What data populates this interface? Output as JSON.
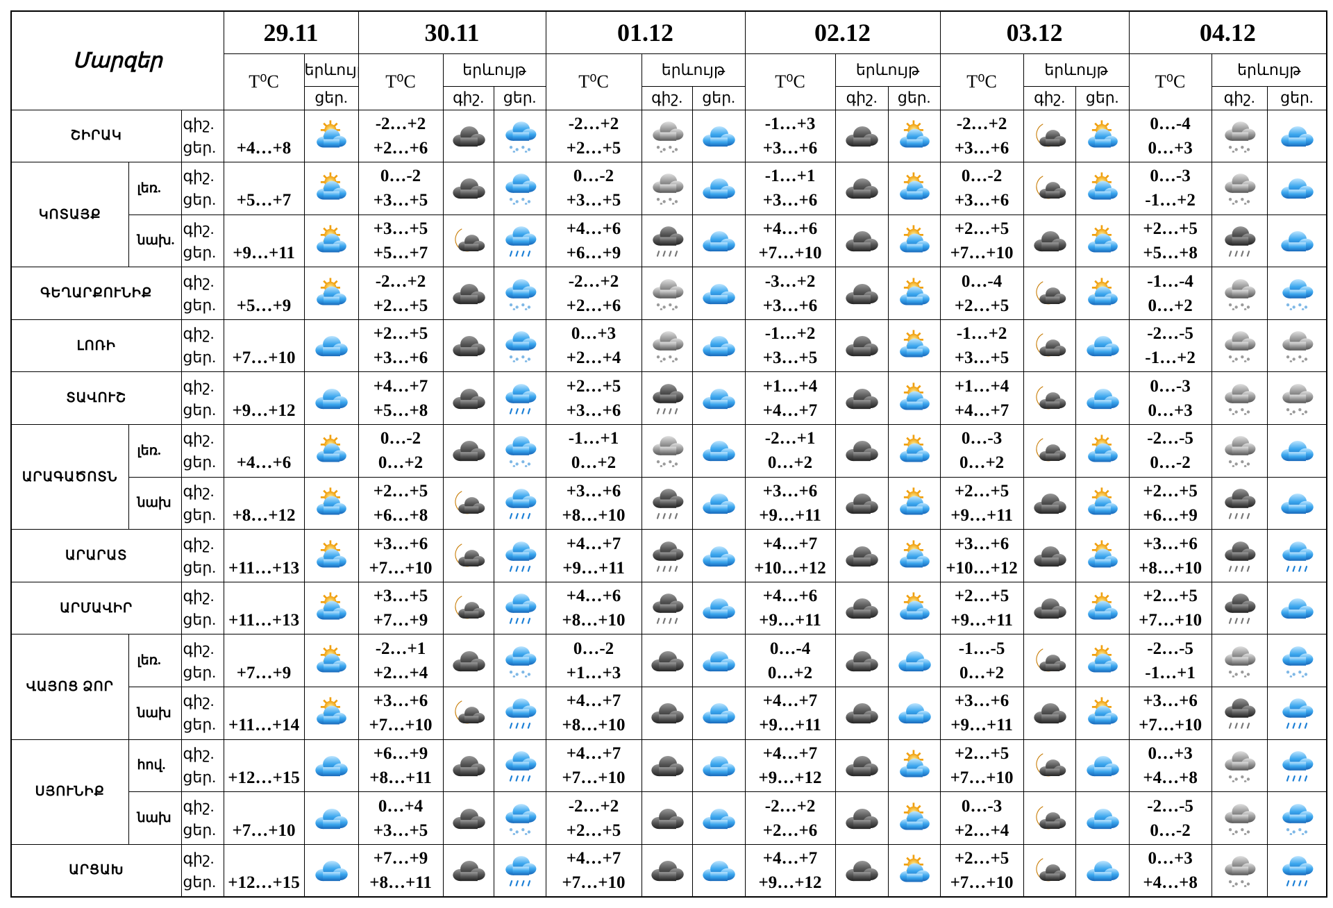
{
  "header": {
    "title": "Մարզեր",
    "dates": [
      "29.11",
      "30.11",
      "01.12",
      "02.12",
      "03.12",
      "04.12"
    ],
    "temp_label": "T⁰C",
    "phenomenon": "երևույթ",
    "night": "գիշ.",
    "day": "ցեր."
  },
  "regions": [
    {
      "name": "ՇԻՐԱԿ",
      "zones": [
        {
          "today_day": "+4…+8",
          "days": [
            {
              "night": "-2…+2",
              "day": "+2…+6"
            },
            {
              "night": "-2…+2",
              "day": "+2…+5"
            },
            {
              "night": "-1…+3",
              "day": "+3…+6"
            },
            {
              "night": "-2…+2",
              "day": "+3…+6"
            },
            {
              "night": "0…-4",
              "day": "0…+3"
            }
          ]
        }
      ]
    },
    {
      "name": "ԿՈՏԱՅՔ",
      "zones": [
        {
          "name": "լեռ.",
          "today_day": "+5…+7",
          "days": [
            {
              "night": "0…-2",
              "day": "+3…+5"
            },
            {
              "night": "0…-2",
              "day": "+3…+5"
            },
            {
              "night": "-1…+1",
              "day": "+3…+6"
            },
            {
              "night": "0…-2",
              "day": "+3…+6"
            },
            {
              "night": "0…-3",
              "day": "-1…+2"
            }
          ]
        },
        {
          "name": "նախ.",
          "today_day": "+9…+11",
          "days": [
            {
              "night": "+3…+5",
              "day": "+5…+7"
            },
            {
              "night": "+4…+6",
              "day": "+6…+9"
            },
            {
              "night": "+4…+6",
              "day": "+7…+10"
            },
            {
              "night": "+2…+5",
              "day": "+7…+10"
            },
            {
              "night": "+2…+5",
              "day": "+5…+8"
            }
          ]
        }
      ]
    },
    {
      "name": "ԳԵՂԱՐՔՈՒՆԻՔ",
      "zones": [
        {
          "today_day": "+5…+9",
          "days": [
            {
              "night": "-2…+2",
              "day": "+2…+5"
            },
            {
              "night": "-2…+2",
              "day": "+2…+6"
            },
            {
              "night": "-3…+2",
              "day": "+3…+6"
            },
            {
              "night": "0…-4",
              "day": "+2…+5"
            },
            {
              "night": "-1…-4",
              "day": "0…+2"
            }
          ]
        }
      ]
    },
    {
      "name": "ԼՈՌԻ",
      "zones": [
        {
          "today_day": "+7…+10",
          "days": [
            {
              "night": "+2…+5",
              "day": "+3…+6"
            },
            {
              "night": "0…+3",
              "day": "+2…+4"
            },
            {
              "night": "-1…+2",
              "day": "+3…+5"
            },
            {
              "night": "-1…+2",
              "day": "+3…+5"
            },
            {
              "night": "-2…-5",
              "day": "-1…+2"
            }
          ]
        }
      ]
    },
    {
      "name": "ՏԱՎՈՒՇ",
      "zones": [
        {
          "today_day": "+9…+12",
          "days": [
            {
              "night": "+4…+7",
              "day": "+5…+8"
            },
            {
              "night": "+2…+5",
              "day": "+3…+6"
            },
            {
              "night": "+1…+4",
              "day": "+4…+7"
            },
            {
              "night": "+1…+4",
              "day": "+4…+7"
            },
            {
              "night": "0…-3",
              "day": "0…+3"
            }
          ]
        }
      ]
    },
    {
      "name": "ԱՐԱԳԱԾՈՏՆ",
      "zones": [
        {
          "name": "լեռ.",
          "today_day": "+4…+6",
          "days": [
            {
              "night": "0…-2",
              "day": "0…+2"
            },
            {
              "night": "-1…+1",
              "day": "0…+2"
            },
            {
              "night": "-2…+1",
              "day": "0…+2"
            },
            {
              "night": "0…-3",
              "day": "0…+2"
            },
            {
              "night": "-2…-5",
              "day": "0…-2"
            }
          ]
        },
        {
          "name": "նախ",
          "today_day": "+8…+12",
          "days": [
            {
              "night": "+2…+5",
              "day": "+6…+8"
            },
            {
              "night": "+3…+6",
              "day": "+8…+10"
            },
            {
              "night": "+3…+6",
              "day": "+9…+11"
            },
            {
              "night": "+2…+5",
              "day": "+9…+11"
            },
            {
              "night": "+2…+5",
              "day": "+6…+9"
            }
          ]
        }
      ]
    },
    {
      "name": "ԱՐԱՐԱՏ",
      "zones": [
        {
          "today_day": "+11…+13",
          "days": [
            {
              "night": "+3…+6",
              "day": "+7…+10"
            },
            {
              "night": "+4…+7",
              "day": "+9…+11"
            },
            {
              "night": "+4…+7",
              "day": "+10…+12"
            },
            {
              "night": "+3…+6",
              "day": "+10…+12"
            },
            {
              "night": "+3…+6",
              "day": "+8…+10"
            }
          ]
        }
      ]
    },
    {
      "name": "ԱՐՄԱՎԻՐ",
      "zones": [
        {
          "today_day": "+11…+13",
          "days": [
            {
              "night": "+3…+5",
              "day": "+7…+9"
            },
            {
              "night": "+4…+6",
              "day": "+8…+10"
            },
            {
              "night": "+4…+6",
              "day": "+9…+11"
            },
            {
              "night": "+2…+5",
              "day": "+9…+11"
            },
            {
              "night": "+2…+5",
              "day": "+7…+10"
            }
          ]
        }
      ]
    },
    {
      "name": "ՎԱՅՈՑ ՁՈՐ",
      "zones": [
        {
          "name": "լեռ.",
          "today_day": "+7…+9",
          "days": [
            {
              "night": "-2…+1",
              "day": "+2…+4"
            },
            {
              "night": "0…-2",
              "day": "+1…+3"
            },
            {
              "night": "0…-4",
              "day": "0…+2"
            },
            {
              "night": "-1…-5",
              "day": "0…+2"
            },
            {
              "night": "-2…-5",
              "day": "-1…+1"
            }
          ]
        },
        {
          "name": "նախ",
          "today_day": "+11…+14",
          "days": [
            {
              "night": "+3…+6",
              "day": "+7…+10"
            },
            {
              "night": "+4…+7",
              "day": "+8…+10"
            },
            {
              "night": "+4…+7",
              "day": "+9…+11"
            },
            {
              "night": "+3…+6",
              "day": "+9…+11"
            },
            {
              "night": "+3…+6",
              "day": "+7…+10"
            }
          ]
        }
      ]
    },
    {
      "name": "ՍՅՈՒՆԻՔ",
      "zones": [
        {
          "name": "հով.",
          "today_day": "+12…+15",
          "days": [
            {
              "night": "+6…+9",
              "day": "+8…+11"
            },
            {
              "night": "+4…+7",
              "day": "+7…+10"
            },
            {
              "night": "+4…+7",
              "day": "+9…+12"
            },
            {
              "night": "+2…+5",
              "day": "+7…+10"
            },
            {
              "night": "0…+3",
              "day": "+4…+8"
            }
          ]
        },
        {
          "name": "նախ",
          "today_day": "+7…+10",
          "days": [
            {
              "night": "0…+4",
              "day": "+3…+5"
            },
            {
              "night": "-2…+2",
              "day": "+2…+5"
            },
            {
              "night": "-2…+2",
              "day": "+2…+6"
            },
            {
              "night": "0…-3",
              "day": "+2…+4"
            },
            {
              "night": "-2…-5",
              "day": "0…-2"
            }
          ]
        }
      ]
    },
    {
      "name": "ԱՐՑԱԽ",
      "zones": [
        {
          "today_day": "+12…+15",
          "days": [
            {
              "night": "+7…+9",
              "day": "+8…+11"
            },
            {
              "night": "+4…+7",
              "day": "+7…+10"
            },
            {
              "night": "+4…+7",
              "day": "+9…+12"
            },
            {
              "night": "+2…+5",
              "day": "+7…+10"
            },
            {
              "night": "0…+3",
              "day": "+4…+8"
            }
          ]
        }
      ]
    }
  ]
}
